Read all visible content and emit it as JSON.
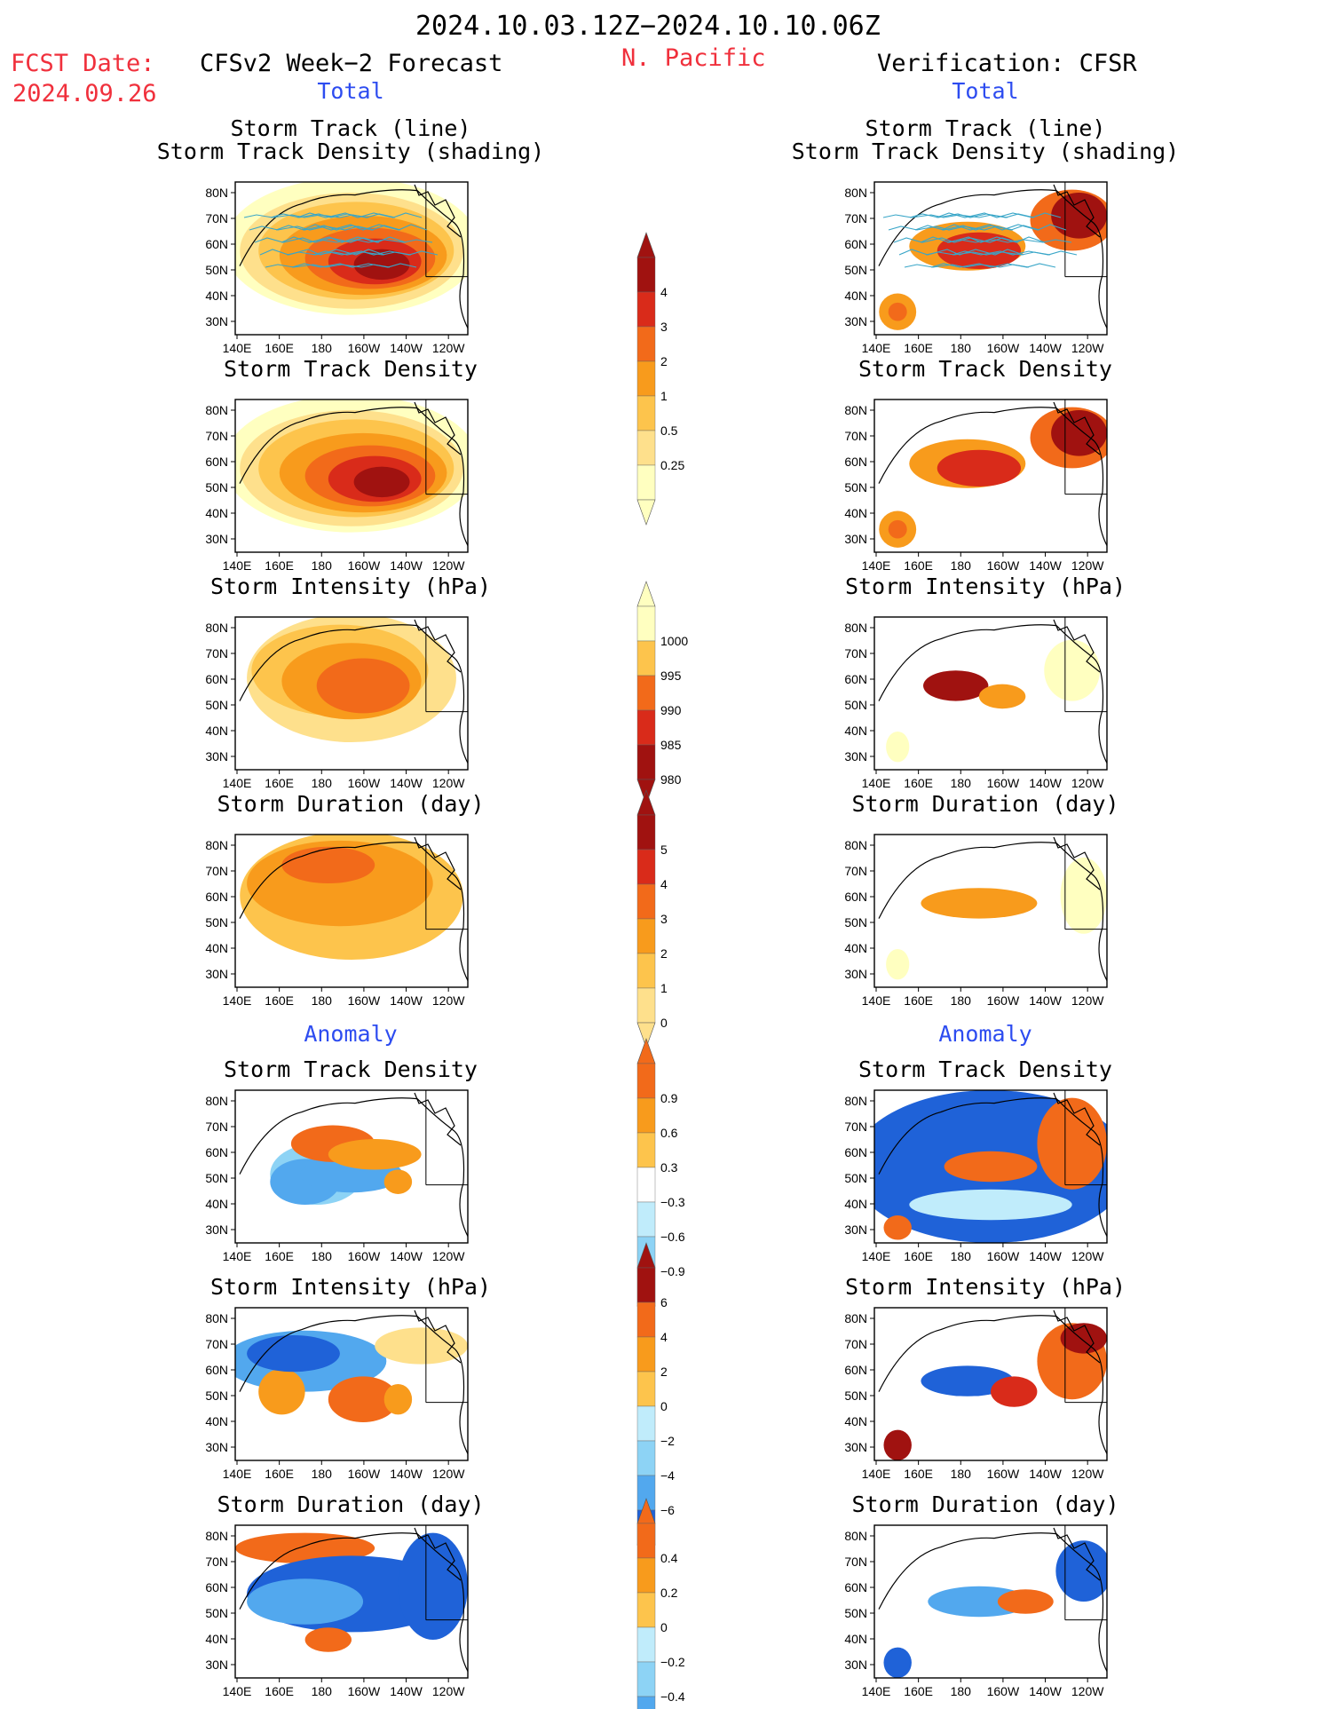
{
  "header": {
    "period": "2024.10.03.12Z−2024.10.10.06Z",
    "fcst_label": "FCST Date:",
    "fcst_date": "2024.09.26",
    "left_title": "CFSv2 Week−2 Forecast",
    "region": "N. Pacific",
    "right_title": "Verification: CFSR",
    "total": "Total",
    "anomaly": "Anomaly"
  },
  "panel_titles": {
    "track": "Storm Track (line)",
    "track_density_shading": "Storm Track Density (shading)",
    "density": "Storm Track Density",
    "intensity": "Storm Intensity (hPa)",
    "duration": "Storm Duration (day)"
  },
  "axes": {
    "lon_labels": [
      "140E",
      "160E",
      "180",
      "160W",
      "140W",
      "120W"
    ],
    "lat_labels": [
      "80N",
      "70N",
      "60N",
      "50N",
      "40N",
      "30N"
    ]
  },
  "colorbars": {
    "density_total": [
      "4",
      "3",
      "2",
      "1",
      "0.5",
      "0.25"
    ],
    "intensity_total": [
      "1000",
      "995",
      "990",
      "985",
      "980"
    ],
    "duration_total": [
      "5",
      "4",
      "3",
      "2",
      "1",
      "0"
    ],
    "density_anom": [
      "0.9",
      "0.6",
      "0.3",
      "−0.3",
      "−0.6",
      "−0.9"
    ],
    "intensity_anom": [
      "6",
      "4",
      "2",
      "0",
      "−2",
      "−4",
      "−6"
    ],
    "duration_anom": [
      "0.4",
      "0.2",
      "0",
      "−0.2",
      "−0.4"
    ]
  },
  "colors": {
    "warm": [
      "#ffffc0",
      "#fee08c",
      "#fdc44c",
      "#f89b1c",
      "#f26a1a",
      "#d92b1a",
      "#a01210"
    ],
    "cool": [
      "#c0ecfb",
      "#8dd3f5",
      "#52a8ee",
      "#1f62d8",
      "#1044b8"
    ],
    "track_line": "#39a6c8"
  }
}
